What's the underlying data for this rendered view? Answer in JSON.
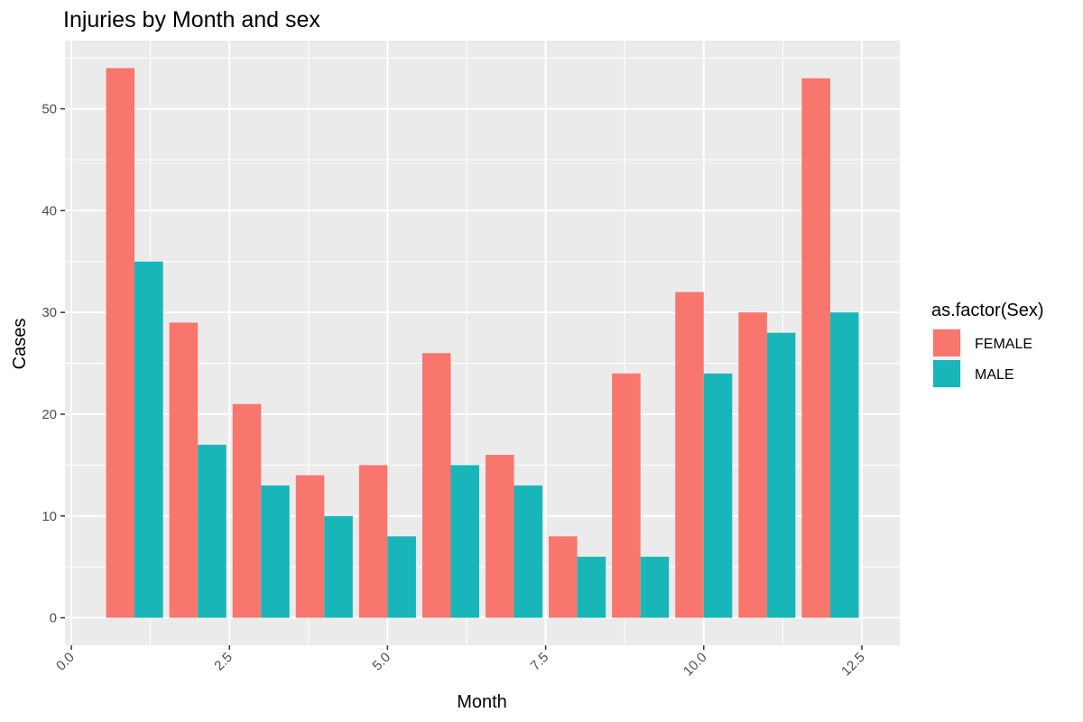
{
  "chart_data": {
    "type": "bar",
    "title": "Injuries by Month and sex",
    "xlabel": "Month",
    "ylabel": "Cases",
    "x": [
      1,
      2,
      3,
      4,
      5,
      6,
      7,
      8,
      9,
      10,
      11,
      12
    ],
    "xlim": [
      -0.1,
      13.1
    ],
    "ylim": [
      -2.7,
      56.7
    ],
    "x_ticks": [
      {
        "value": 0,
        "label": "0.0"
      },
      {
        "value": 2.5,
        "label": "2.5"
      },
      {
        "value": 5,
        "label": "5.0"
      },
      {
        "value": 7.5,
        "label": "7.5"
      },
      {
        "value": 10,
        "label": "10.0"
      },
      {
        "value": 12.5,
        "label": "12.5"
      }
    ],
    "y_ticks": [
      {
        "value": 0,
        "label": "0"
      },
      {
        "value": 10,
        "label": "10"
      },
      {
        "value": 20,
        "label": "20"
      },
      {
        "value": 30,
        "label": "30"
      },
      {
        "value": 40,
        "label": "40"
      },
      {
        "value": 50,
        "label": "50"
      }
    ],
    "series": [
      {
        "name": "FEMALE",
        "color": "#f8766d",
        "values": [
          54,
          29,
          21,
          14,
          15,
          26,
          16,
          8,
          24,
          32,
          30,
          53
        ]
      },
      {
        "name": "MALE",
        "color": "#19b6b9",
        "values": [
          35,
          17,
          13,
          10,
          8,
          15,
          13,
          6,
          6,
          24,
          28,
          30
        ]
      }
    ],
    "legend": {
      "title": "as.factor(Sex)",
      "placement": "right"
    },
    "grid": true,
    "panel_color": "#ebebeb",
    "grid_color": "#ffffff"
  }
}
